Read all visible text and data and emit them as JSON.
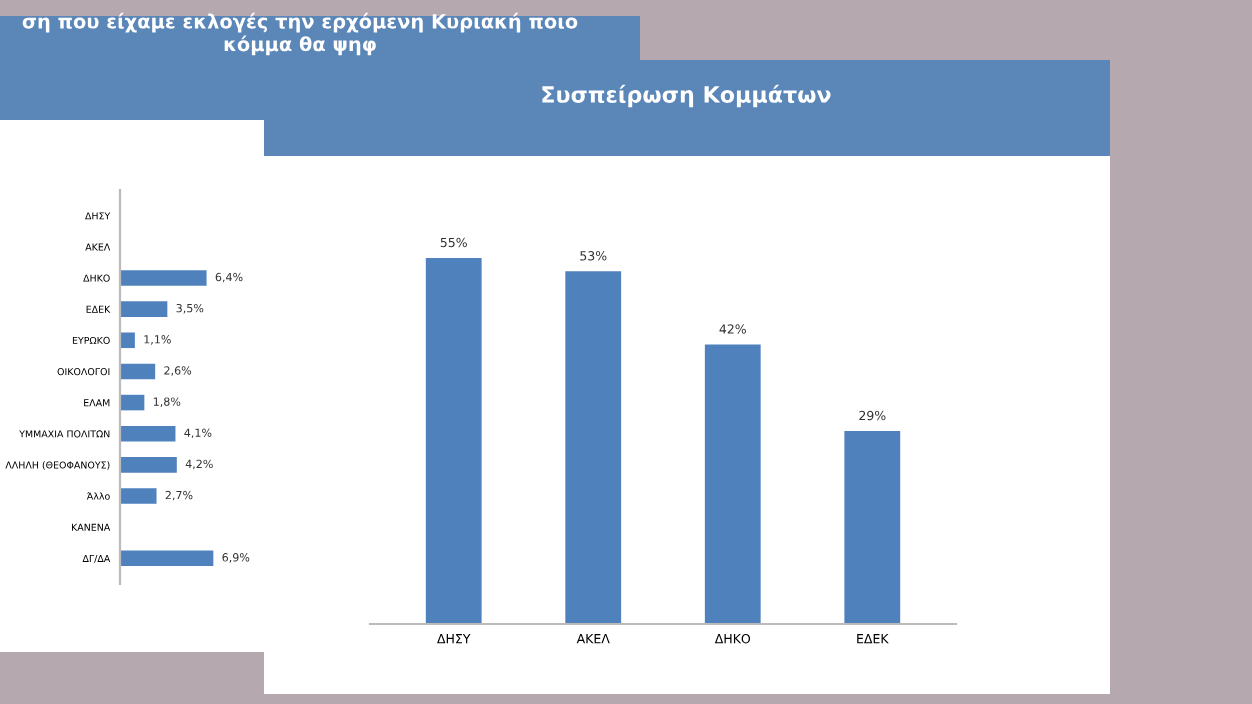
{
  "chart_data": [
    {
      "type": "bar",
      "orientation": "horizontal",
      "title": "ση που είχαμε εκλογές την ερχόμενη Κυριακή ποιο\nκόμμα θα ψηφ",
      "categories": [
        "ΔΗΣΥ",
        "ΑΚΕΛ",
        "ΔΗΚΟ",
        "ΕΔΕΚ",
        "ΕΥΡΩΚΟ",
        "ΟΙΚΟΛΟΓΟΙ",
        "ΕΛΑΜ",
        "ΥΜΜΑΧΙΑ ΠΟΛΙΤΩΝ",
        "ΛΛΗΛΗ (ΘΕΟΦΑΝΟΥΣ)",
        "Άλλο",
        "ΚΑΝΕΝΑ",
        "ΔΓ/ΔΑ"
      ],
      "values": [
        null,
        null,
        6.4,
        3.5,
        1.1,
        2.6,
        1.8,
        4.1,
        4.2,
        2.7,
        null,
        6.9
      ],
      "value_labels": [
        null,
        null,
        "6,4%",
        "3,5%",
        "1,1%",
        "2,6%",
        "1,8%",
        "4,1%",
        "4,2%",
        "2,7%",
        null,
        "6,9%"
      ],
      "color": "#4f81bd",
      "tick_labels": "y",
      "grid": false,
      "legend": false
    },
    {
      "type": "bar",
      "title": "Συσπείρωση Κομμάτων",
      "categories": [
        "ΔΗΣΥ",
        "ΑΚΕΛ",
        "ΔΗΚΟ",
        "ΕΔΕΚ"
      ],
      "values": [
        55,
        53,
        42,
        29
      ],
      "value_labels": [
        "55%",
        "53%",
        "42%",
        "29%"
      ],
      "color": "#4f81bd",
      "tick_labels": "x",
      "grid": false,
      "legend": false
    }
  ]
}
